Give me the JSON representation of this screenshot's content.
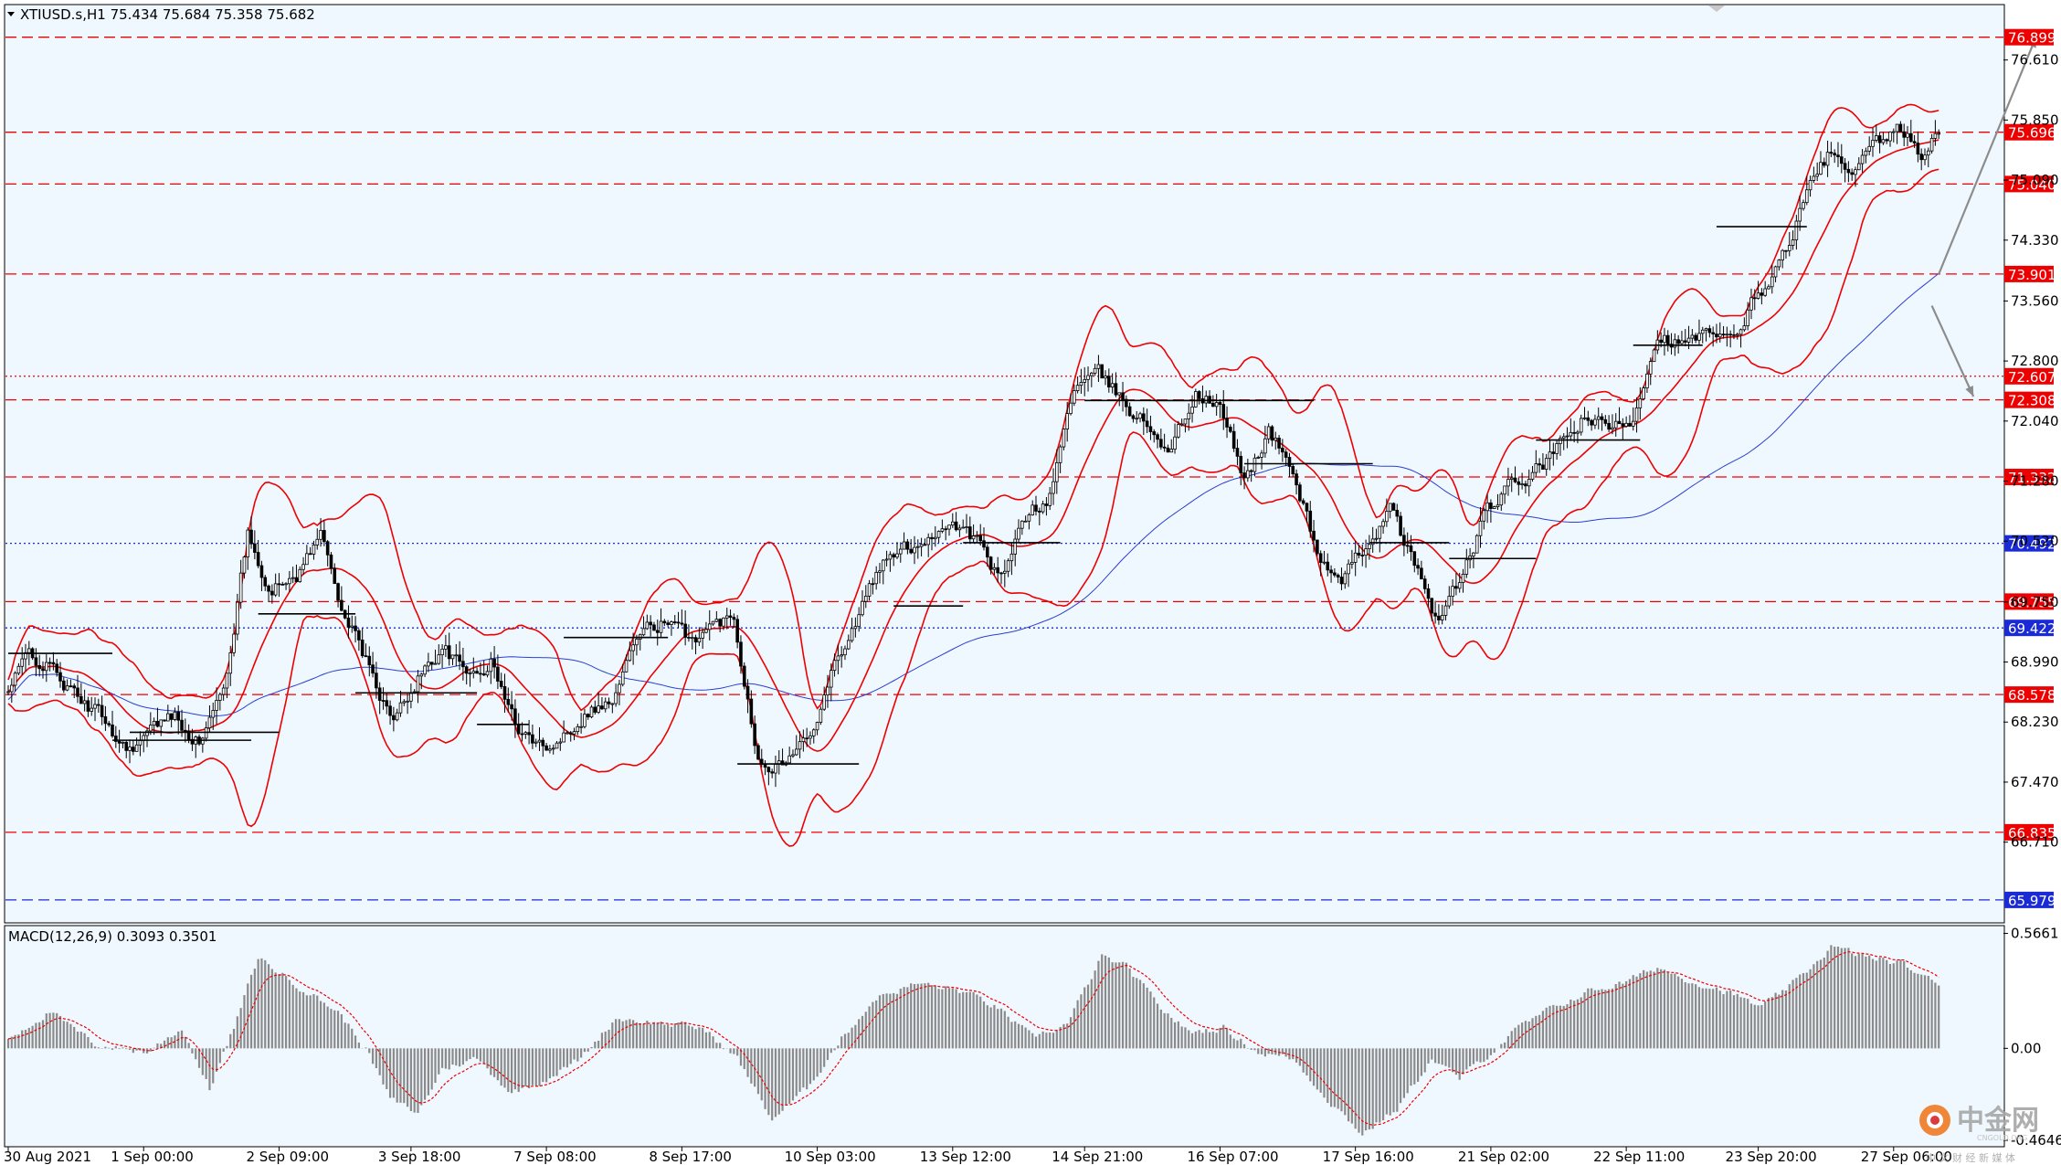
{
  "chart_data": [
    {
      "type": "candlestick",
      "symbol_header": "XTIUSD.s,H1  75.434 75.684 75.358 75.682",
      "ohlc_last": {
        "open": 75.434,
        "high": 75.684,
        "low": 75.358,
        "close": 75.682
      },
      "ylim": [
        65.7,
        77.3
      ],
      "y_ticks": [
        "76.610",
        "75.850",
        "75.090",
        "74.330",
        "73.560",
        "72.800",
        "72.040",
        "71.280",
        "70.520",
        "69.750",
        "68.990",
        "68.230",
        "67.470",
        "66.710"
      ],
      "x_ticks": [
        "30 Aug 2021",
        "1 Sep 00:00",
        "2 Sep 09:00",
        "3 Sep 18:00",
        "7 Sep 08:00",
        "8 Sep 17:00",
        "10 Sep 03:00",
        "13 Sep 12:00",
        "14 Sep 21:00",
        "16 Sep 07:00",
        "17 Sep 16:00",
        "21 Sep 02:00",
        "22 Sep 11:00",
        "23 Sep 20:00",
        "27 Sep 06:00"
      ],
      "close_path": [
        [
          0,
          68.6
        ],
        [
          6,
          69.1
        ],
        [
          13,
          68.9
        ],
        [
          20,
          68.5
        ],
        [
          27,
          68.3
        ],
        [
          34,
          67.9
        ],
        [
          41,
          68.1
        ],
        [
          48,
          68.3
        ],
        [
          55,
          68.0
        ],
        [
          62,
          68.6
        ],
        [
          69,
          70.6
        ],
        [
          76,
          69.9
        ],
        [
          83,
          70.1
        ],
        [
          90,
          70.6
        ],
        [
          97,
          69.6
        ],
        [
          104,
          68.9
        ],
        [
          111,
          68.2
        ],
        [
          118,
          68.8
        ],
        [
          125,
          69.2
        ],
        [
          132,
          68.8
        ],
        [
          139,
          69.0
        ],
        [
          146,
          68.2
        ],
        [
          153,
          67.9
        ],
        [
          160,
          68.1
        ],
        [
          167,
          68.4
        ],
        [
          174,
          68.5
        ],
        [
          181,
          69.3
        ],
        [
          188,
          69.5
        ],
        [
          195,
          69.3
        ],
        [
          202,
          69.4
        ],
        [
          209,
          69.6
        ],
        [
          216,
          67.8
        ],
        [
          223,
          67.7
        ],
        [
          230,
          68.0
        ],
        [
          237,
          68.9
        ],
        [
          244,
          69.5
        ],
        [
          251,
          70.2
        ],
        [
          258,
          70.4
        ],
        [
          265,
          70.6
        ],
        [
          272,
          70.8
        ],
        [
          279,
          70.5
        ],
        [
          286,
          70.0
        ],
        [
          293,
          70.8
        ],
        [
          300,
          71.1
        ],
        [
          307,
          72.5
        ],
        [
          314,
          72.6
        ],
        [
          321,
          72.3
        ],
        [
          328,
          72.0
        ],
        [
          335,
          71.7
        ],
        [
          342,
          72.4
        ],
        [
          349,
          72.2
        ],
        [
          356,
          71.3
        ],
        [
          363,
          71.9
        ],
        [
          370,
          71.4
        ],
        [
          377,
          70.4
        ],
        [
          384,
          69.9
        ],
        [
          391,
          70.5
        ],
        [
          398,
          70.9
        ],
        [
          405,
          70.2
        ],
        [
          412,
          69.5
        ],
        [
          419,
          70.1
        ],
        [
          426,
          70.9
        ],
        [
          433,
          71.2
        ],
        [
          440,
          71.4
        ],
        [
          447,
          71.7
        ],
        [
          454,
          72.1
        ],
        [
          461,
          71.9
        ],
        [
          468,
          72.1
        ],
        [
          475,
          73.2
        ],
        [
          482,
          73.0
        ],
        [
          489,
          73.1
        ],
        [
          496,
          73.0
        ],
        [
          503,
          73.6
        ],
        [
          510,
          74.0
        ],
        [
          517,
          74.8
        ],
        [
          524,
          75.4
        ],
        [
          531,
          75.1
        ],
        [
          538,
          75.5
        ],
        [
          545,
          75.7
        ],
        [
          552,
          75.4
        ],
        [
          556,
          75.682
        ]
      ],
      "indicators": [
        {
          "name": "Bollinger Bands",
          "color": "#ee0000"
        },
        {
          "name": "Moving Average",
          "color": "#2b3fd0"
        }
      ],
      "horizontal_levels": [
        {
          "value": "76.899",
          "color": "#ee0000",
          "style": "dashed"
        },
        {
          "value": "75.696",
          "color": "#ee0000",
          "style": "dashed"
        },
        {
          "value": "75.040",
          "color": "#ee0000",
          "style": "dashed"
        },
        {
          "value": "73.901",
          "color": "#ee0000",
          "style": "dashed"
        },
        {
          "value": "72.607",
          "color": "#ee0000",
          "style": "dotted"
        },
        {
          "value": "72.308",
          "color": "#ee0000",
          "style": "dashed"
        },
        {
          "value": "71.332",
          "color": "#ee0000",
          "style": "dashed"
        },
        {
          "value": "70.492",
          "color": "#1a2bd6",
          "style": "dotted"
        },
        {
          "value": "69.755",
          "color": "#ee0000",
          "style": "dashed"
        },
        {
          "value": "69.422",
          "color": "#1a2bd6",
          "style": "dotted"
        },
        {
          "value": "68.578",
          "color": "#ee0000",
          "style": "dashed"
        },
        {
          "value": "66.835",
          "color": "#ee0000",
          "style": "dashed"
        },
        {
          "value": "65.979",
          "color": "#1a2bd6",
          "style": "dashed"
        }
      ],
      "forecast_arrows": [
        {
          "direction": "up",
          "from": [
            556,
            73.9
          ],
          "to": [
            584,
            76.9
          ]
        },
        {
          "direction": "down",
          "from": [
            554,
            73.5
          ],
          "to": [
            566,
            72.35
          ]
        }
      ]
    },
    {
      "type": "histogram",
      "title": "MACD(12,26,9) 0.3093 0.3501",
      "macd_value": 0.3093,
      "signal_value": 0.3501,
      "y_ticks": [
        "0.5661",
        "0.00",
        "-0.4646"
      ],
      "ylim": [
        -0.48,
        0.6
      ],
      "bars_path": [
        [
          0,
          0.05
        ],
        [
          12,
          0.18
        ],
        [
          25,
          0.02
        ],
        [
          40,
          -0.02
        ],
        [
          50,
          0.1
        ],
        [
          58,
          -0.2
        ],
        [
          65,
          0.1
        ],
        [
          72,
          0.45
        ],
        [
          80,
          0.35
        ],
        [
          95,
          0.18
        ],
        [
          103,
          0.0
        ],
        [
          110,
          -0.25
        ],
        [
          118,
          -0.32
        ],
        [
          125,
          -0.1
        ],
        [
          135,
          -0.05
        ],
        [
          145,
          -0.22
        ],
        [
          155,
          -0.15
        ],
        [
          165,
          -0.05
        ],
        [
          175,
          0.15
        ],
        [
          190,
          0.12
        ],
        [
          200,
          0.1
        ],
        [
          210,
          -0.05
        ],
        [
          220,
          -0.35
        ],
        [
          230,
          -0.2
        ],
        [
          240,
          0.05
        ],
        [
          250,
          0.25
        ],
        [
          262,
          0.32
        ],
        [
          275,
          0.28
        ],
        [
          285,
          0.2
        ],
        [
          295,
          0.05
        ],
        [
          305,
          0.12
        ],
        [
          315,
          0.45
        ],
        [
          322,
          0.4
        ],
        [
          332,
          0.2
        ],
        [
          340,
          0.08
        ],
        [
          350,
          0.1
        ],
        [
          360,
          -0.02
        ],
        [
          370,
          -0.05
        ],
        [
          380,
          -0.25
        ],
        [
          390,
          -0.42
        ],
        [
          400,
          -0.3
        ],
        [
          410,
          -0.05
        ],
        [
          418,
          -0.15
        ],
        [
          425,
          -0.05
        ],
        [
          435,
          0.1
        ],
        [
          445,
          0.2
        ],
        [
          455,
          0.28
        ],
        [
          465,
          0.32
        ],
        [
          475,
          0.4
        ],
        [
          485,
          0.33
        ],
        [
          495,
          0.28
        ],
        [
          505,
          0.2
        ],
        [
          515,
          0.33
        ],
        [
          525,
          0.5
        ],
        [
          535,
          0.45
        ],
        [
          545,
          0.42
        ],
        [
          556,
          0.31
        ]
      ]
    }
  ],
  "watermark": {
    "name": "中金网",
    "url": "CNGOLD.ORG",
    "tagline": "中 文 财 经 新 媒 体"
  }
}
